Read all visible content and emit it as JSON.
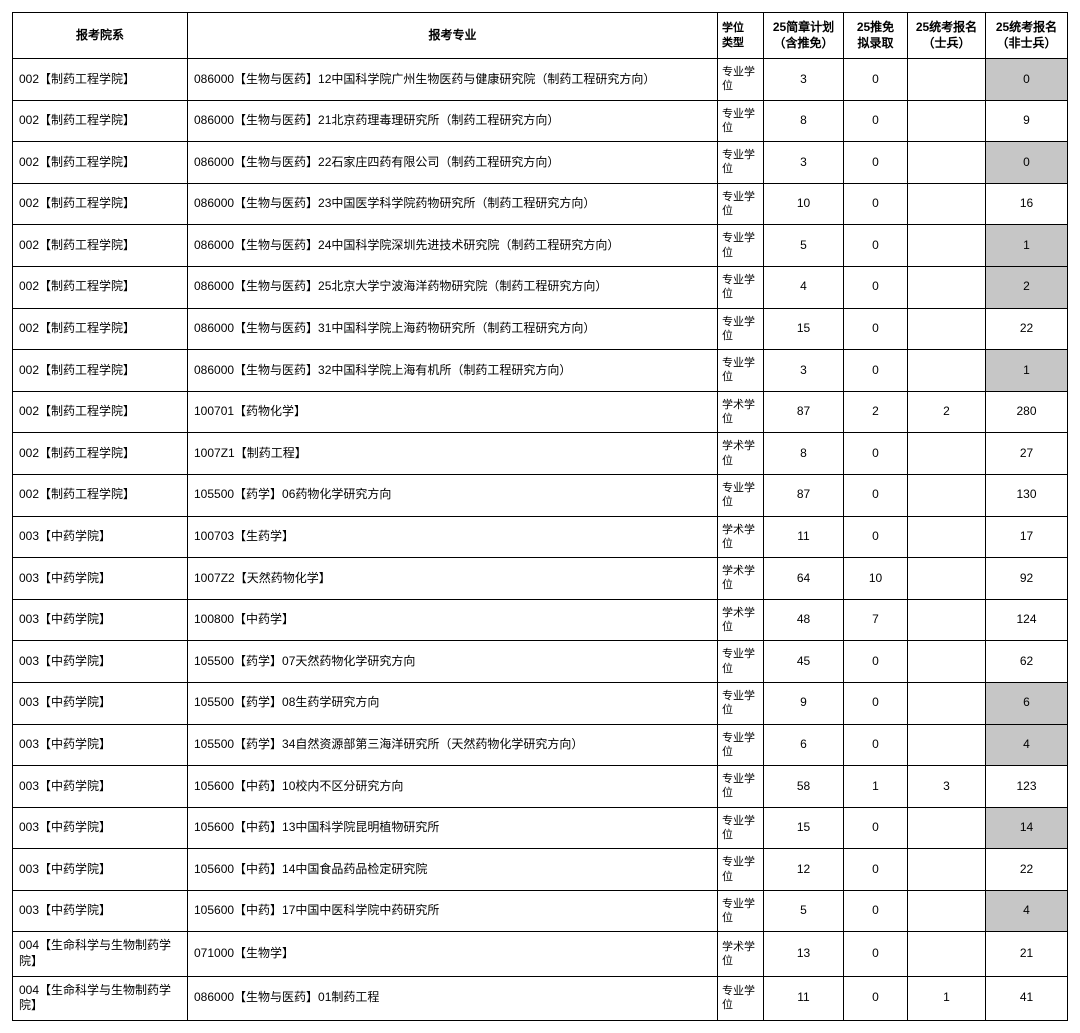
{
  "headers": {
    "dept": "报考院系",
    "major": "报考专业",
    "degree": "学位\n类型",
    "plan": "25简章计划\n（含推免）",
    "admitted": "25推免\n拟录取",
    "soldier": "25统考报名\n（士兵）",
    "nonsoldier": "25统考报名\n（非士兵）"
  },
  "rows": [
    {
      "dept": "002【制药工程学院】",
      "major": "086000【生物与医药】12中国科学院广州生物医药与健康研究院（制药工程研究方向）",
      "degree": "专业学位",
      "plan": "3",
      "admitted": "0",
      "soldier": "",
      "nonsoldier": "0",
      "hl": true
    },
    {
      "dept": "002【制药工程学院】",
      "major": "086000【生物与医药】21北京药理毒理研究所（制药工程研究方向）",
      "degree": "专业学位",
      "plan": "8",
      "admitted": "0",
      "soldier": "",
      "nonsoldier": "9",
      "hl": false
    },
    {
      "dept": "002【制药工程学院】",
      "major": "086000【生物与医药】22石家庄四药有限公司（制药工程研究方向）",
      "degree": "专业学位",
      "plan": "3",
      "admitted": "0",
      "soldier": "",
      "nonsoldier": "0",
      "hl": true
    },
    {
      "dept": "002【制药工程学院】",
      "major": "086000【生物与医药】23中国医学科学院药物研究所（制药工程研究方向）",
      "degree": "专业学位",
      "plan": "10",
      "admitted": "0",
      "soldier": "",
      "nonsoldier": "16",
      "hl": false
    },
    {
      "dept": "002【制药工程学院】",
      "major": "086000【生物与医药】24中国科学院深圳先进技术研究院（制药工程研究方向）",
      "degree": "专业学位",
      "plan": "5",
      "admitted": "0",
      "soldier": "",
      "nonsoldier": "1",
      "hl": true
    },
    {
      "dept": "002【制药工程学院】",
      "major": "086000【生物与医药】25北京大学宁波海洋药物研究院（制药工程研究方向）",
      "degree": "专业学位",
      "plan": "4",
      "admitted": "0",
      "soldier": "",
      "nonsoldier": "2",
      "hl": true
    },
    {
      "dept": "002【制药工程学院】",
      "major": "086000【生物与医药】31中国科学院上海药物研究所（制药工程研究方向）",
      "degree": "专业学位",
      "plan": "15",
      "admitted": "0",
      "soldier": "",
      "nonsoldier": "22",
      "hl": false
    },
    {
      "dept": "002【制药工程学院】",
      "major": "086000【生物与医药】32中国科学院上海有机所（制药工程研究方向）",
      "degree": "专业学位",
      "plan": "3",
      "admitted": "0",
      "soldier": "",
      "nonsoldier": "1",
      "hl": true
    },
    {
      "dept": "002【制药工程学院】",
      "major": "100701【药物化学】",
      "degree": "学术学位",
      "plan": "87",
      "admitted": "2",
      "soldier": "2",
      "nonsoldier": "280",
      "hl": false
    },
    {
      "dept": "002【制药工程学院】",
      "major": "1007Z1【制药工程】",
      "degree": "学术学位",
      "plan": "8",
      "admitted": "0",
      "soldier": "",
      "nonsoldier": "27",
      "hl": false
    },
    {
      "dept": "002【制药工程学院】",
      "major": "105500【药学】06药物化学研究方向",
      "degree": "专业学位",
      "plan": "87",
      "admitted": "0",
      "soldier": "",
      "nonsoldier": "130",
      "hl": false
    },
    {
      "dept": "003【中药学院】",
      "major": "100703【生药学】",
      "degree": "学术学位",
      "plan": "11",
      "admitted": "0",
      "soldier": "",
      "nonsoldier": "17",
      "hl": false
    },
    {
      "dept": "003【中药学院】",
      "major": "1007Z2【天然药物化学】",
      "degree": "学术学位",
      "plan": "64",
      "admitted": "10",
      "soldier": "",
      "nonsoldier": "92",
      "hl": false
    },
    {
      "dept": "003【中药学院】",
      "major": "100800【中药学】",
      "degree": "学术学位",
      "plan": "48",
      "admitted": "7",
      "soldier": "",
      "nonsoldier": "124",
      "hl": false
    },
    {
      "dept": "003【中药学院】",
      "major": "105500【药学】07天然药物化学研究方向",
      "degree": "专业学位",
      "plan": "45",
      "admitted": "0",
      "soldier": "",
      "nonsoldier": "62",
      "hl": false
    },
    {
      "dept": "003【中药学院】",
      "major": "105500【药学】08生药学研究方向",
      "degree": "专业学位",
      "plan": "9",
      "admitted": "0",
      "soldier": "",
      "nonsoldier": "6",
      "hl": true
    },
    {
      "dept": "003【中药学院】",
      "major": "105500【药学】34自然资源部第三海洋研究所（天然药物化学研究方向）",
      "degree": "专业学位",
      "plan": "6",
      "admitted": "0",
      "soldier": "",
      "nonsoldier": "4",
      "hl": true
    },
    {
      "dept": "003【中药学院】",
      "major": "105600【中药】10校内不区分研究方向",
      "degree": "专业学位",
      "plan": "58",
      "admitted": "1",
      "soldier": "3",
      "nonsoldier": "123",
      "hl": false
    },
    {
      "dept": "003【中药学院】",
      "major": "105600【中药】13中国科学院昆明植物研究所",
      "degree": "专业学位",
      "plan": "15",
      "admitted": "0",
      "soldier": "",
      "nonsoldier": "14",
      "hl": true
    },
    {
      "dept": "003【中药学院】",
      "major": "105600【中药】14中国食品药品检定研究院",
      "degree": "专业学位",
      "plan": "12",
      "admitted": "0",
      "soldier": "",
      "nonsoldier": "22",
      "hl": false
    },
    {
      "dept": "003【中药学院】",
      "major": "105600【中药】17中国中医科学院中药研究所",
      "degree": "专业学位",
      "plan": "5",
      "admitted": "0",
      "soldier": "",
      "nonsoldier": "4",
      "hl": true
    },
    {
      "dept": "004【生命科学与生物制药学院】",
      "major": "071000【生物学】",
      "degree": "学术学位",
      "plan": "13",
      "admitted": "0",
      "soldier": "",
      "nonsoldier": "21",
      "hl": false
    },
    {
      "dept": "004【生命科学与生物制药学院】",
      "major": "086000【生物与医药】01制药工程",
      "degree": "专业学位",
      "plan": "11",
      "admitted": "0",
      "soldier": "1",
      "nonsoldier": "41",
      "hl": false
    }
  ]
}
